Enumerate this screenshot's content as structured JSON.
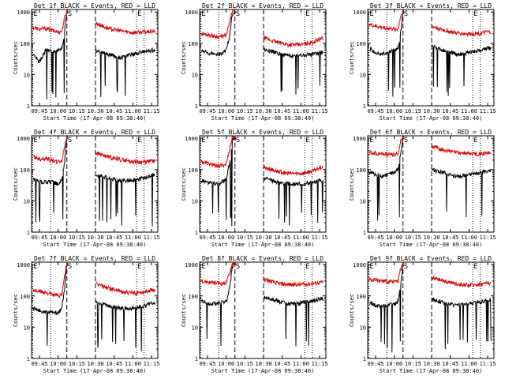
{
  "colors": {
    "events": "#000000",
    "lld": "#dd0000",
    "background": "#ffffff",
    "axis": "#000000"
  },
  "common": {
    "ylabel": "Counts/sec",
    "xlabel": "Start Time (17-Apr-08 09:38:40)",
    "xticks": [
      "09:45",
      "10:00",
      "10:15",
      "10:30",
      "10:45",
      "11:00",
      "11:15"
    ],
    "yticks": [
      "1",
      "10",
      "100",
      "1000"
    ],
    "ylim": [
      1,
      1200
    ],
    "xlim": [
      "09:38:40",
      "11:20"
    ],
    "yscale": "log",
    "markers": [
      {
        "letter": "E",
        "time": "09:39:30",
        "style": "dotted"
      },
      {
        "letter": "",
        "time": "09:54:00",
        "style": "dotted"
      },
      {
        "letter": "S",
        "time": "10:07:00",
        "style": "dashed"
      },
      {
        "letter": "",
        "time": "10:30:00",
        "style": "dashed"
      },
      {
        "letter": "E",
        "time": "11:03:00",
        "style": "dotted"
      },
      {
        "letter": "",
        "time": "11:09:00",
        "style": "dotted"
      }
    ]
  },
  "panels": [
    {
      "title": "Det 1f BLACK = Events, RED = LLD",
      "x_label_shown": true,
      "y_label_shown": true
    },
    {
      "title": "Det 2f BLACK = Events, RED = LLD",
      "x_label_shown": true,
      "y_label_shown": true
    },
    {
      "title": "Det 3f BLACK = Events, RED = LLD",
      "x_label_shown": true,
      "y_label_shown": true
    },
    {
      "title": "Det 4f BLACK = Events, RED = LLD",
      "x_label_shown": true,
      "y_label_shown": true
    },
    {
      "title": "Det 5f BLACK = Events, RED = LLD",
      "x_label_shown": true,
      "y_label_shown": true
    },
    {
      "title": "Det 6f BLACK = Events, RED = LLD",
      "x_label_shown": true,
      "y_label_shown": true
    },
    {
      "title": "Det 7f BLACK = Events, RED = LLD",
      "x_label_shown": true,
      "y_label_shown": true
    },
    {
      "title": "Det 8f BLACK = Events, RED = LLD",
      "x_label_shown": true,
      "y_label_shown": true
    },
    {
      "title": "Det 9f BLACK = Events, RED = LLD",
      "x_label_shown": true,
      "y_label_shown": true
    }
  ],
  "chart_data": [
    {
      "type": "line",
      "title": "Det 1f BLACK = Events, RED = LLD",
      "xlabel": "Start Time (17-Apr-08 09:38:40)",
      "ylabel": "Counts/sec",
      "yscale": "log",
      "ylim": [
        1,
        1200
      ],
      "series": [
        {
          "name": "Events",
          "color": "#000000",
          "x": [
            "09:40",
            "09:45",
            "09:50",
            "09:55",
            "10:00",
            "10:03",
            "10:05",
            "10:07",
            "10:30",
            "10:40",
            "10:50",
            "11:00",
            "11:10",
            "11:15"
          ],
          "values": [
            40,
            25,
            60,
            55,
            58,
            70,
            200,
            1100,
            60,
            45,
            35,
            45,
            55,
            60
          ]
        },
        {
          "name": "LLD",
          "color": "#dd0000",
          "x": [
            "09:40",
            "09:45",
            "09:50",
            "09:55",
            "10:00",
            "10:03",
            "10:05",
            "10:07",
            "10:30",
            "10:40",
            "10:50",
            "11:00",
            "11:10",
            "11:15"
          ],
          "values": [
            320,
            280,
            300,
            260,
            230,
            240,
            600,
            1100,
            450,
            300,
            250,
            220,
            230,
            240
          ]
        }
      ]
    },
    {
      "type": "line",
      "title": "Det 2f BLACK = Events, RED = LLD",
      "xlabel": "Start Time (17-Apr-08 09:38:40)",
      "ylabel": "Counts/sec",
      "yscale": "log",
      "ylim": [
        1,
        1200
      ],
      "series": [
        {
          "name": "Events",
          "color": "#000000",
          "x": [
            "09:40",
            "09:45",
            "09:50",
            "09:55",
            "10:00",
            "10:03",
            "10:05",
            "10:07",
            "10:30",
            "10:40",
            "10:50",
            "11:00",
            "11:10",
            "11:15"
          ],
          "values": [
            55,
            50,
            45,
            45,
            60,
            200,
            900,
            1100,
            65,
            50,
            40,
            40,
            45,
            50
          ]
        },
        {
          "name": "LLD",
          "color": "#dd0000",
          "x": [
            "09:40",
            "09:45",
            "09:50",
            "09:55",
            "10:00",
            "10:03",
            "10:05",
            "10:07",
            "10:30",
            "10:40",
            "10:50",
            "11:00",
            "11:10",
            "11:15"
          ],
          "values": [
            200,
            190,
            170,
            160,
            180,
            500,
            1100,
            1100,
            150,
            110,
            90,
            90,
            110,
            140
          ]
        }
      ]
    },
    {
      "type": "line",
      "title": "Det 3f BLACK = Events, RED = LLD",
      "xlabel": "Start Time (17-Apr-08 09:38:40)",
      "ylabel": "Counts/sec",
      "yscale": "log",
      "ylim": [
        1,
        1200
      ],
      "series": [
        {
          "name": "Events",
          "color": "#000000",
          "x": [
            "09:40",
            "09:45",
            "09:50",
            "09:55",
            "10:00",
            "10:03",
            "10:05",
            "10:07",
            "10:30",
            "10:40",
            "10:50",
            "11:00",
            "11:10",
            "11:15"
          ],
          "values": [
            70,
            50,
            45,
            50,
            60,
            70,
            200,
            1100,
            80,
            60,
            45,
            50,
            60,
            70
          ]
        },
        {
          "name": "LLD",
          "color": "#dd0000",
          "x": [
            "09:40",
            "09:45",
            "09:50",
            "09:55",
            "10:00",
            "10:03",
            "10:05",
            "10:07",
            "10:30",
            "10:40",
            "10:50",
            "11:00",
            "11:10",
            "11:15"
          ],
          "values": [
            400,
            350,
            320,
            300,
            280,
            280,
            700,
            1100,
            350,
            260,
            210,
            200,
            210,
            230
          ]
        }
      ]
    },
    {
      "type": "line",
      "title": "Det 4f BLACK = Events, RED = LLD",
      "xlabel": "Start Time (17-Apr-08 09:38:40)",
      "ylabel": "Counts/sec",
      "yscale": "log",
      "ylim": [
        1,
        1200
      ],
      "series": [
        {
          "name": "Events",
          "color": "#000000",
          "x": [
            "09:40",
            "09:45",
            "09:50",
            "09:55",
            "10:00",
            "10:03",
            "10:05",
            "10:07",
            "10:30",
            "10:40",
            "10:50",
            "11:00",
            "11:10",
            "11:15"
          ],
          "values": [
            50,
            40,
            40,
            40,
            35,
            45,
            150,
            1100,
            70,
            55,
            45,
            45,
            55,
            65
          ]
        },
        {
          "name": "LLD",
          "color": "#dd0000",
          "x": [
            "09:40",
            "09:45",
            "09:50",
            "09:55",
            "10:00",
            "10:03",
            "10:05",
            "10:07",
            "10:30",
            "10:40",
            "10:50",
            "11:00",
            "11:10",
            "11:15"
          ],
          "values": [
            260,
            220,
            230,
            200,
            180,
            190,
            500,
            1100,
            350,
            260,
            210,
            180,
            170,
            190
          ]
        }
      ]
    },
    {
      "type": "line",
      "title": "Det 5f BLACK = Events, RED = LLD",
      "xlabel": "Start Time (17-Apr-08 09:38:40)",
      "ylabel": "Counts/sec",
      "yscale": "log",
      "ylim": [
        1,
        1200
      ],
      "series": [
        {
          "name": "Events",
          "color": "#000000",
          "x": [
            "09:40",
            "09:45",
            "09:50",
            "09:55",
            "10:00",
            "10:03",
            "10:05",
            "10:07",
            "10:30",
            "10:40",
            "10:50",
            "11:00",
            "11:10",
            "11:15"
          ],
          "values": [
            45,
            40,
            35,
            35,
            50,
            180,
            900,
            1100,
            55,
            40,
            35,
            35,
            40,
            45
          ]
        },
        {
          "name": "LLD",
          "color": "#dd0000",
          "x": [
            "09:40",
            "09:45",
            "09:50",
            "09:55",
            "10:00",
            "10:03",
            "10:05",
            "10:07",
            "10:30",
            "10:40",
            "10:50",
            "11:00",
            "11:10",
            "11:15"
          ],
          "values": [
            180,
            160,
            140,
            130,
            150,
            500,
            1100,
            1100,
            120,
            90,
            75,
            75,
            90,
            120
          ]
        }
      ]
    },
    {
      "type": "line",
      "title": "Det 6f BLACK = Events, RED = LLD",
      "xlabel": "Start Time (17-Apr-08 09:38:40)",
      "ylabel": "Counts/sec",
      "yscale": "log",
      "ylim": [
        1,
        1200
      ],
      "series": [
        {
          "name": "Events",
          "color": "#000000",
          "x": [
            "09:40",
            "09:45",
            "09:50",
            "09:55",
            "10:00",
            "10:03",
            "10:05",
            "10:07",
            "10:30",
            "10:40",
            "10:50",
            "11:00",
            "11:10",
            "11:15"
          ],
          "values": [
            80,
            70,
            60,
            70,
            80,
            100,
            300,
            1100,
            100,
            80,
            60,
            70,
            80,
            90
          ]
        },
        {
          "name": "LLD",
          "color": "#dd0000",
          "x": [
            "09:40",
            "09:45",
            "09:50",
            "09:55",
            "10:00",
            "10:03",
            "10:05",
            "10:07",
            "10:30",
            "10:40",
            "10:50",
            "11:00",
            "11:10",
            "11:15"
          ],
          "values": [
            350,
            340,
            320,
            310,
            300,
            320,
            800,
            1100,
            550,
            420,
            350,
            330,
            320,
            340
          ]
        }
      ]
    },
    {
      "type": "line",
      "title": "Det 7f BLACK = Events, RED = LLD",
      "xlabel": "Start Time (17-Apr-08 09:38:40)",
      "ylabel": "Counts/sec",
      "yscale": "log",
      "ylim": [
        1,
        1200
      ],
      "series": [
        {
          "name": "Events",
          "color": "#000000",
          "x": [
            "09:40",
            "09:45",
            "09:50",
            "09:55",
            "10:00",
            "10:03",
            "10:05",
            "10:07",
            "10:30",
            "10:40",
            "10:50",
            "11:00",
            "11:10",
            "11:15"
          ],
          "values": [
            40,
            35,
            30,
            30,
            28,
            40,
            150,
            1100,
            65,
            50,
            40,
            40,
            50,
            60
          ]
        },
        {
          "name": "LLD",
          "color": "#dd0000",
          "x": [
            "09:40",
            "09:45",
            "09:50",
            "09:55",
            "10:00",
            "10:03",
            "10:05",
            "10:07",
            "10:30",
            "10:40",
            "10:50",
            "11:00",
            "11:10",
            "11:15"
          ],
          "values": [
            150,
            140,
            130,
            110,
            100,
            110,
            400,
            1100,
            250,
            180,
            140,
            120,
            140,
            160
          ]
        }
      ]
    },
    {
      "type": "line",
      "title": "Det 8f BLACK = Events, RED = LLD",
      "xlabel": "Start Time (17-Apr-08 09:38:40)",
      "ylabel": "Counts/sec",
      "yscale": "log",
      "ylim": [
        1,
        1200
      ],
      "series": [
        {
          "name": "Events",
          "color": "#000000",
          "x": [
            "09:40",
            "09:45",
            "09:50",
            "09:55",
            "10:00",
            "10:03",
            "10:05",
            "10:07",
            "10:30",
            "10:40",
            "10:50",
            "11:00",
            "11:10",
            "11:15"
          ],
          "values": [
            70,
            60,
            55,
            60,
            65,
            200,
            900,
            1100,
            90,
            70,
            55,
            60,
            70,
            80
          ]
        },
        {
          "name": "LLD",
          "color": "#dd0000",
          "x": [
            "09:40",
            "09:45",
            "09:50",
            "09:55",
            "10:00",
            "10:03",
            "10:05",
            "10:07",
            "10:30",
            "10:40",
            "10:50",
            "11:00",
            "11:10",
            "11:15"
          ],
          "values": [
            300,
            280,
            260,
            250,
            260,
            600,
            1100,
            1100,
            350,
            260,
            230,
            230,
            250,
            270
          ]
        }
      ]
    },
    {
      "type": "line",
      "title": "Det 9f BLACK = Events, RED = LLD",
      "xlabel": "Start Time (17-Apr-08 09:38:40)",
      "ylabel": "Counts/sec",
      "yscale": "log",
      "ylim": [
        1,
        1200
      ],
      "series": [
        {
          "name": "Events",
          "color": "#000000",
          "x": [
            "09:40",
            "09:45",
            "09:50",
            "09:55",
            "10:00",
            "10:03",
            "10:05",
            "10:07",
            "10:30",
            "10:40",
            "10:50",
            "11:00",
            "11:10",
            "11:15"
          ],
          "values": [
            60,
            50,
            45,
            50,
            55,
            65,
            200,
            1100,
            80,
            60,
            50,
            55,
            65,
            75
          ]
        },
        {
          "name": "LLD",
          "color": "#dd0000",
          "x": [
            "09:40",
            "09:45",
            "09:50",
            "09:55",
            "10:00",
            "10:03",
            "10:05",
            "10:07",
            "10:30",
            "10:40",
            "10:50",
            "11:00",
            "11:10",
            "11:15"
          ],
          "values": [
            350,
            320,
            300,
            290,
            280,
            300,
            700,
            1100,
            380,
            300,
            240,
            220,
            240,
            260
          ]
        }
      ]
    }
  ]
}
